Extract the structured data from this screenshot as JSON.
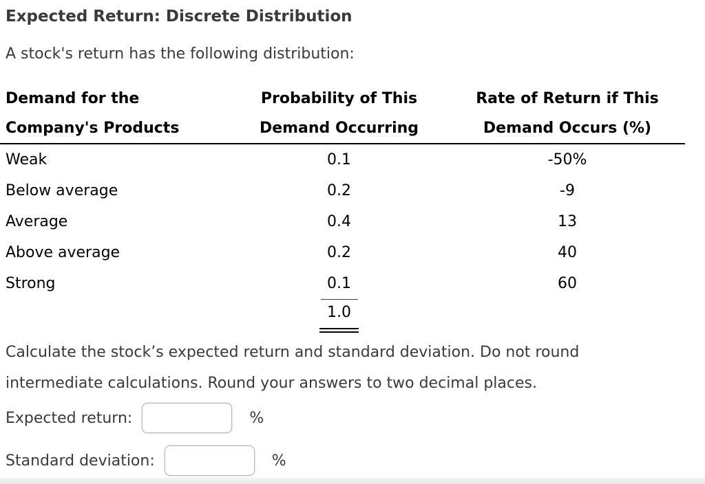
{
  "page": {
    "title": "Expected Return: Discrete Distribution",
    "intro": "A stock's return has the following distribution:",
    "instructions_line1": "Calculate the stock’s expected return and standard deviation. Do not round",
    "instructions_line2": "intermediate calculations. Round your answers to two decimal places."
  },
  "table": {
    "headers": [
      {
        "line1": "Demand for the",
        "line2": "Company's Products"
      },
      {
        "line1": "Probability of This",
        "line2": "Demand Occurring"
      },
      {
        "line1": "Rate of Return if This",
        "line2": "Demand Occurs (%)"
      }
    ],
    "rows": [
      {
        "demand": "Weak",
        "probability": "0.1",
        "rate": "-50%"
      },
      {
        "demand": "Below average",
        "probability": "0.2",
        "rate": "-9"
      },
      {
        "demand": "Average",
        "probability": "0.4",
        "rate": "13"
      },
      {
        "demand": "Above average",
        "probability": "0.2",
        "rate": "40"
      },
      {
        "demand": "Strong",
        "probability": "0.1",
        "rate": "60"
      }
    ],
    "probability_total": "1.0"
  },
  "answers": {
    "expected_return_label": "Expected return:",
    "expected_return_value": "",
    "standard_deviation_label": "Standard deviation:",
    "standard_deviation_value": "",
    "unit": "%"
  }
}
